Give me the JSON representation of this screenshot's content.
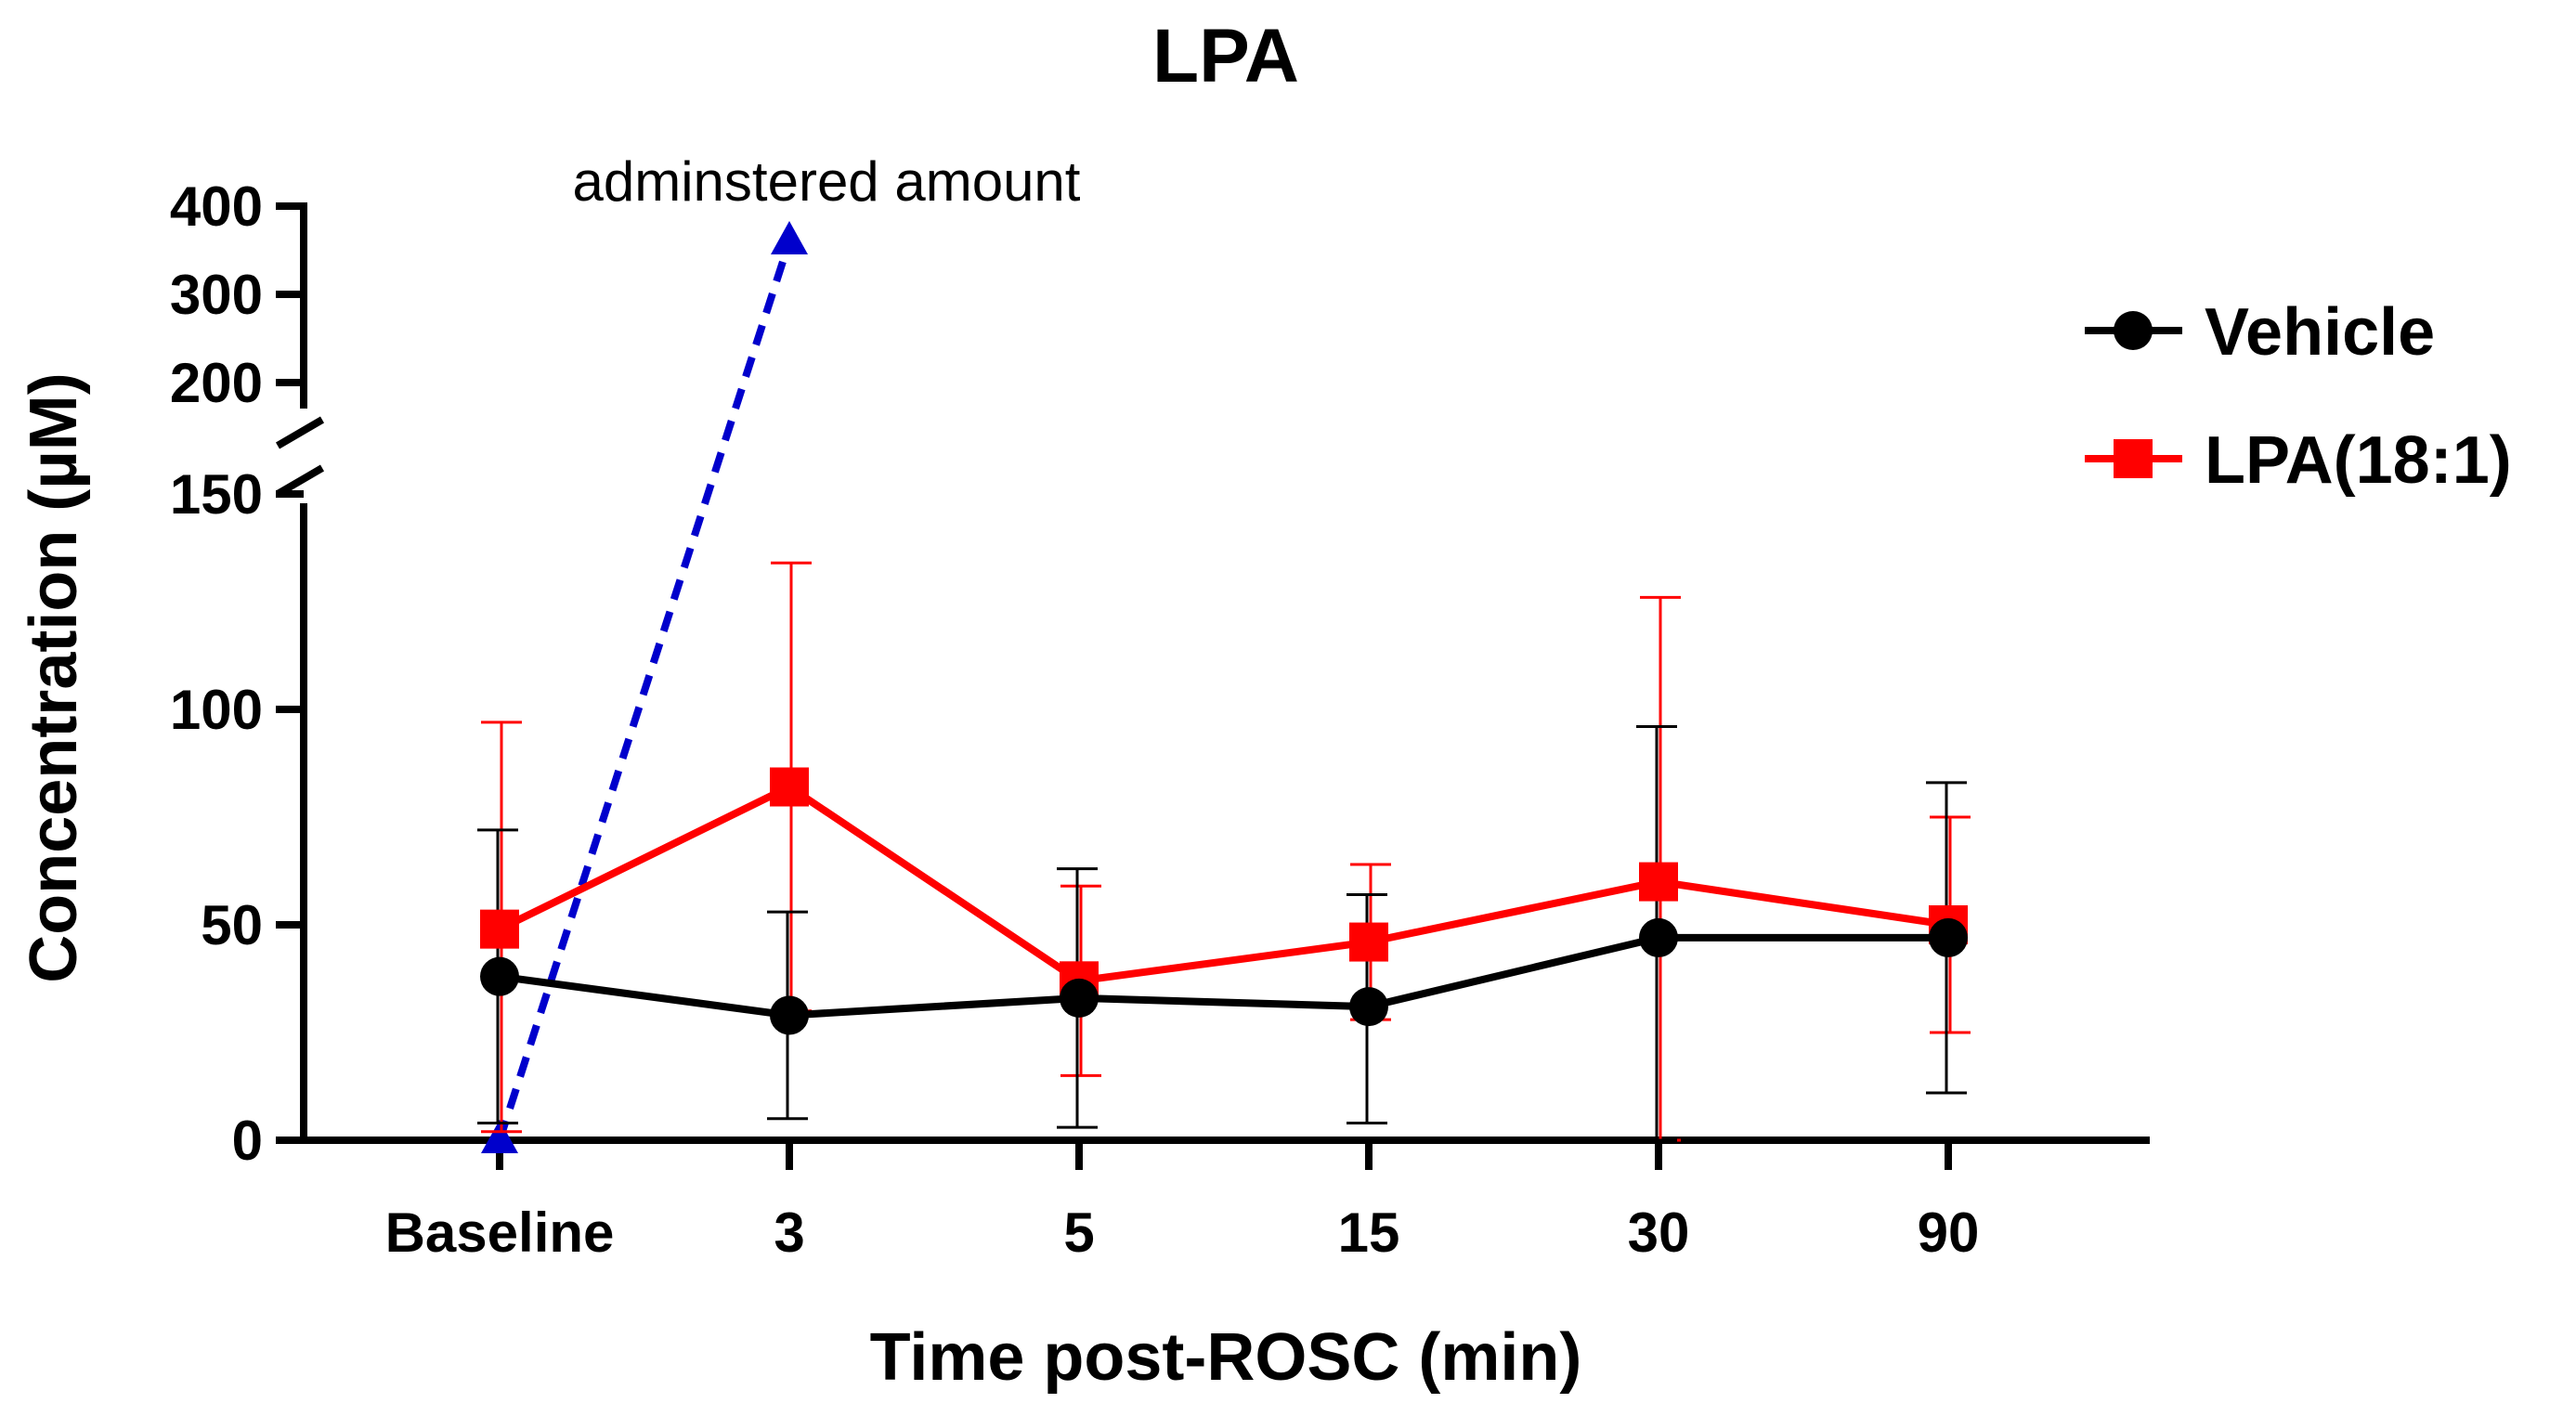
{
  "chart_data": {
    "type": "line",
    "title": "LPA",
    "xlabel": "Time post-ROSC (min)",
    "ylabel": "Concentration (µM)",
    "categories": [
      "Baseline",
      "3",
      "5",
      "15",
      "30",
      "90"
    ],
    "y_axis": {
      "lower_segment": {
        "range": [
          0,
          150
        ],
        "ticks": [
          "0",
          "50",
          "100",
          "150"
        ],
        "tick_values": [
          0,
          50,
          100,
          150
        ]
      },
      "upper_segment": {
        "range": [
          200,
          400
        ],
        "ticks": [
          "200",
          "300",
          "400"
        ],
        "tick_values": [
          200,
          300,
          400
        ]
      },
      "broken": true
    },
    "series": [
      {
        "name": "Vehicle",
        "color": "#000000",
        "marker": "circle",
        "values": [
          38,
          29,
          33,
          31,
          47,
          47
        ],
        "error_upper": [
          72,
          53,
          63,
          57,
          96,
          83
        ],
        "error_lower": [
          4,
          5,
          3,
          4,
          0,
          11
        ]
      },
      {
        "name": "LPA(18:1)",
        "color": "#ff0000",
        "marker": "square",
        "values": [
          49,
          82,
          37,
          46,
          60,
          50
        ],
        "error_upper": [
          97,
          134,
          59,
          64,
          126,
          75
        ],
        "error_lower": [
          2,
          30,
          15,
          28,
          0,
          25
        ]
      }
    ],
    "administered": {
      "label": "adminstered amount",
      "color": "#0000cc",
      "marker": "triangle",
      "points": [
        {
          "category": "Baseline",
          "value": 0
        },
        {
          "category": "3",
          "value": 360
        }
      ]
    },
    "legend": {
      "placement": "right",
      "entries": [
        "Vehicle",
        "LPA(18:1)"
      ]
    }
  }
}
